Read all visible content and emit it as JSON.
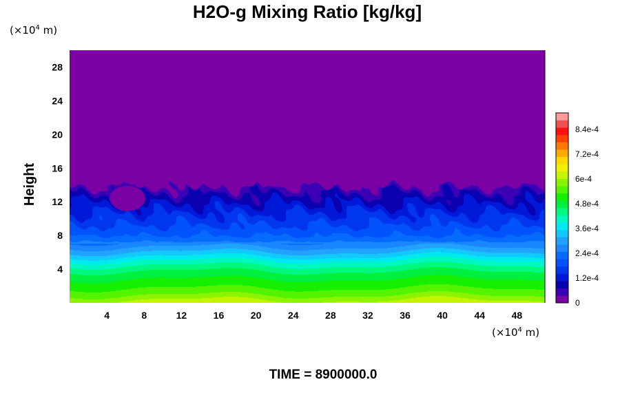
{
  "chart_data": {
    "type": "heatmap",
    "title": "H2O-g Mixing Ratio [kg/kg]",
    "ylabel": "Height",
    "xlabel": "",
    "x_unit": "(×10",
    "x_unit_exp": "4",
    "x_unit_tail": " m)",
    "y_unit": "(×10",
    "y_unit_exp": "4",
    "y_unit_tail": " m)",
    "time_label": "TIME = 8900000.0",
    "xlim": [
      0,
      51
    ],
    "ylim": [
      0,
      30
    ],
    "x_ticks": [
      4,
      8,
      12,
      16,
      20,
      24,
      28,
      32,
      36,
      40,
      44,
      48
    ],
    "x_tick_labels": [
      "4",
      "8",
      "12",
      "16",
      "20",
      "24",
      "28",
      "32",
      "36",
      "40",
      "44",
      "48"
    ],
    "y_ticks": [
      4,
      8,
      12,
      16,
      20,
      24,
      28
    ],
    "y_tick_labels": [
      "4",
      "8",
      "12",
      "16",
      "20",
      "24",
      "28"
    ],
    "colorbar": {
      "min": 0,
      "max": 0.00092,
      "ticks": [
        0,
        0.00012,
        0.00024,
        0.00036,
        0.00048,
        0.0006,
        0.00072,
        0.00084
      ],
      "tick_labels": [
        "0",
        "1.2e-4",
        "2.4e-4",
        "3.6e-4",
        "4.8e-4",
        "6e-4",
        "7.2e-4",
        "8.4e-4"
      ]
    },
    "field_profile": {
      "height": [
        0,
        1,
        2,
        3,
        4,
        5,
        6,
        7,
        8,
        9,
        10,
        11,
        12,
        13,
        14,
        15,
        30
      ],
      "value": [
        0.00062,
        0.00056,
        0.00052,
        0.00049,
        0.00045,
        0.00039,
        0.00032,
        0.00026,
        0.00021,
        0.00018,
        0.00016,
        0.00013,
        0.0001,
        7e-05,
        3e-05,
        0.0,
        0.0
      ]
    },
    "moist_top_height": 14
  }
}
